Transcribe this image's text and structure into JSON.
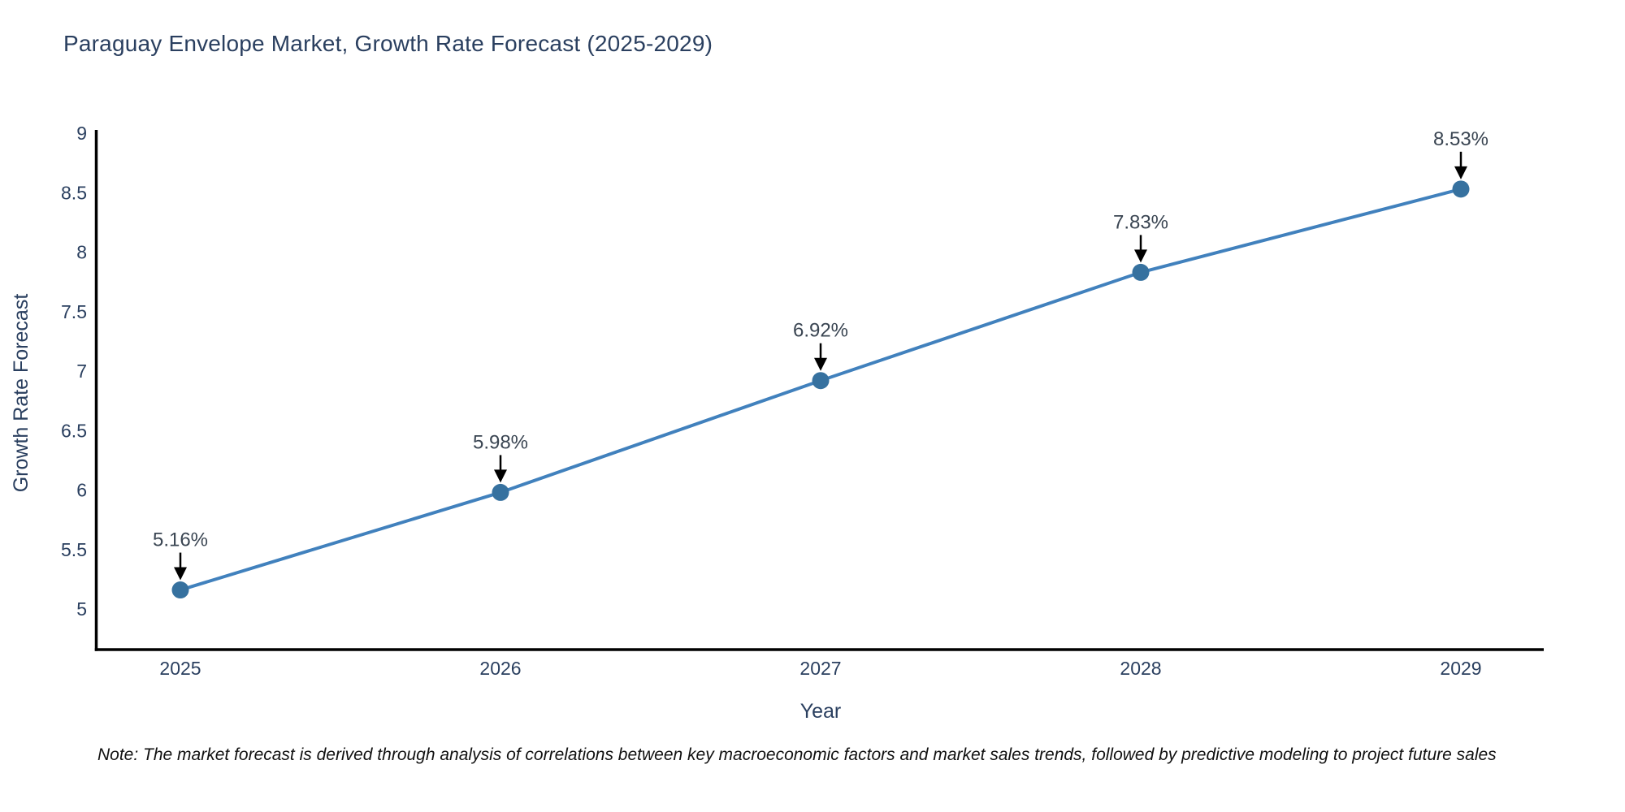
{
  "chart_data": {
    "type": "line",
    "title": "Paraguay Envelope Market, Growth Rate Forecast (2025-2029)",
    "xlabel": "Year",
    "ylabel": "Growth Rate Forecast",
    "x": [
      "2025",
      "2026",
      "2027",
      "2028",
      "2029"
    ],
    "y": [
      5.16,
      5.98,
      6.92,
      7.83,
      8.53
    ],
    "point_labels": [
      "5.16%",
      "5.98%",
      "6.92%",
      "7.83%",
      "8.53%"
    ],
    "yticks": [
      5,
      5.5,
      6,
      6.5,
      7,
      7.5,
      8,
      8.5,
      9
    ],
    "ylim": [
      4.65,
      9.02
    ],
    "grid": false,
    "legend": "none",
    "colors": {
      "line": "#4181bd",
      "marker": "#36719f",
      "axis": "#000000",
      "title_text": "#2a3f5f",
      "tick_text": "#2a3f5f",
      "annotation_text": "#3a4552",
      "annotation_arrow": "#000000"
    }
  },
  "note": {
    "text": "Note: The market forecast is derived through analysis of correlations between key macroeconomic factors and market sales trends, followed by predictive modeling to project future sales"
  }
}
